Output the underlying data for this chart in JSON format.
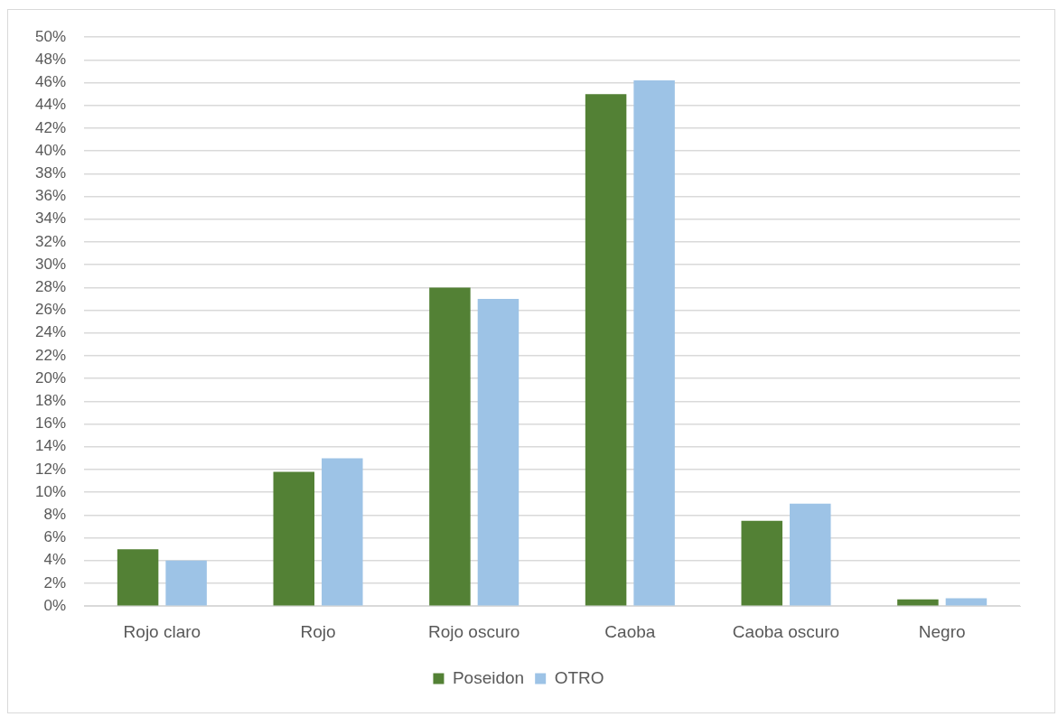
{
  "chart_data": {
    "type": "bar",
    "categories": [
      "Rojo claro",
      "Rojo",
      "Rojo oscuro",
      "Caoba",
      "Caoba oscuro",
      "Negro"
    ],
    "series": [
      {
        "name": "Poseidon",
        "color": "#538135",
        "values": [
          5,
          11.8,
          28,
          45,
          7.5,
          0.6
        ]
      },
      {
        "name": "OTRO",
        "color": "#9dc3e6",
        "values": [
          4,
          13,
          27,
          46.2,
          9,
          0.7
        ]
      }
    ],
    "ylim": [
      0,
      50
    ],
    "yticks": [
      {
        "value": 0,
        "label": "0%"
      },
      {
        "value": 2,
        "label": "2%"
      },
      {
        "value": 4,
        "label": "4%"
      },
      {
        "value": 6,
        "label": "6%"
      },
      {
        "value": 8,
        "label": "8%"
      },
      {
        "value": 10,
        "label": "10%"
      },
      {
        "value": 12,
        "label": "12%"
      },
      {
        "value": 14,
        "label": "14%"
      },
      {
        "value": 16,
        "label": "16%"
      },
      {
        "value": 18,
        "label": "18%"
      },
      {
        "value": 20,
        "label": "20%"
      },
      {
        "value": 22,
        "label": "22%"
      },
      {
        "value": 24,
        "label": "24%"
      },
      {
        "value": 26,
        "label": "26%"
      },
      {
        "value": 28,
        "label": "28%"
      },
      {
        "value": 30,
        "label": "30%"
      },
      {
        "value": 32,
        "label": "32%"
      },
      {
        "value": 34,
        "label": "34%"
      },
      {
        "value": 36,
        "label": "36%"
      },
      {
        "value": 38,
        "label": "38%"
      },
      {
        "value": 40,
        "label": "40%"
      },
      {
        "value": 42,
        "label": "42%"
      },
      {
        "value": 44,
        "label": "44%"
      },
      {
        "value": 46,
        "label": "46%"
      },
      {
        "value": 48,
        "label": "48%"
      },
      {
        "value": 50,
        "label": "50%"
      }
    ],
    "grid": "y",
    "legend": "bottom"
  }
}
